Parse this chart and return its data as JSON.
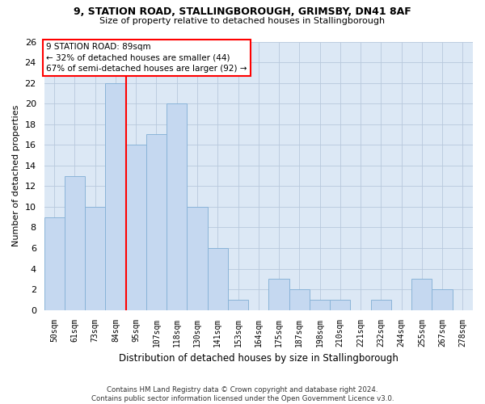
{
  "title_line1": "9, STATION ROAD, STALLINGBOROUGH, GRIMSBY, DN41 8AF",
  "title_line2": "Size of property relative to detached houses in Stallingborough",
  "xlabel": "Distribution of detached houses by size in Stallingborough",
  "ylabel": "Number of detached properties",
  "footnote": "Contains HM Land Registry data © Crown copyright and database right 2024.\nContains public sector information licensed under the Open Government Licence v3.0.",
  "categories": [
    "50sqm",
    "61sqm",
    "73sqm",
    "84sqm",
    "95sqm",
    "107sqm",
    "118sqm",
    "130sqm",
    "141sqm",
    "153sqm",
    "164sqm",
    "175sqm",
    "187sqm",
    "198sqm",
    "210sqm",
    "221sqm",
    "232sqm",
    "244sqm",
    "255sqm",
    "267sqm",
    "278sqm"
  ],
  "values": [
    9,
    13,
    10,
    22,
    16,
    17,
    20,
    10,
    6,
    1,
    0,
    3,
    2,
    1,
    1,
    0,
    1,
    0,
    3,
    2,
    0
  ],
  "bar_color": "#c5d8f0",
  "bar_edge_color": "#8ab4d8",
  "grid_color": "#b8c8dc",
  "background_color": "#dce8f5",
  "annotation_line1": "9 STATION ROAD: 89sqm",
  "annotation_line2": "← 32% of detached houses are smaller (44)",
  "annotation_line3": "67% of semi-detached houses are larger (92) →",
  "annotation_box_color": "white",
  "annotation_box_edge_color": "red",
  "vline_color": "red",
  "vline_x": 3.5,
  "ylim": [
    0,
    26
  ],
  "yticks": [
    0,
    2,
    4,
    6,
    8,
    10,
    12,
    14,
    16,
    18,
    20,
    22,
    24,
    26
  ]
}
